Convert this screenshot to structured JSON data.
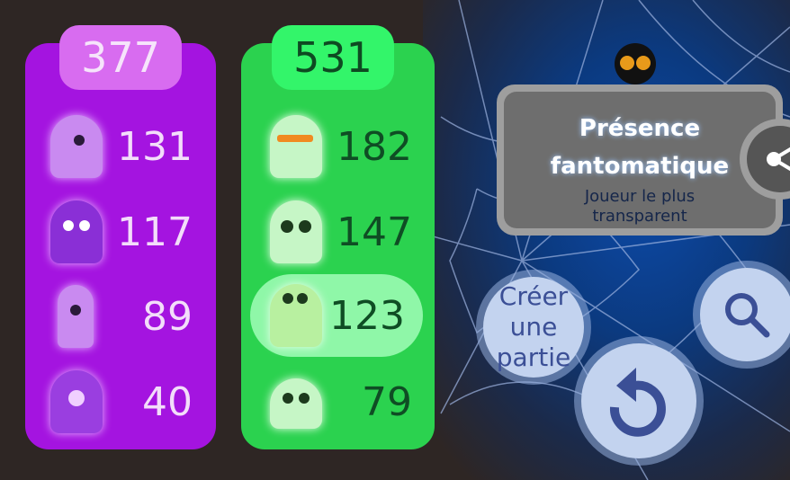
{
  "teams": [
    {
      "color": "purple",
      "total": "377",
      "players": [
        {
          "icon": "ghost-sleepy-icon",
          "score": "131"
        },
        {
          "icon": "ghost-grin-icon",
          "score": "117"
        },
        {
          "icon": "ghost-bunny-icon",
          "score": "89"
        },
        {
          "icon": "ghost-cyclops-icon",
          "score": "40"
        }
      ]
    },
    {
      "color": "green",
      "total": "531",
      "players": [
        {
          "icon": "ghost-sunglasses-icon",
          "score": "182"
        },
        {
          "icon": "ghost-panda-icon",
          "score": "147"
        },
        {
          "icon": "ghost-frog-icon",
          "score": "123",
          "highlighted": true
        },
        {
          "icon": "ghost-cat-icon",
          "score": "79"
        }
      ]
    }
  ],
  "award": {
    "title_line1": "Présence",
    "title_line2": "fantomatique",
    "subtitle_line1": "Joueur le plus",
    "subtitle_line2": "transparent"
  },
  "buttons": {
    "create_line1": "Créer",
    "create_line2": "une",
    "create_line3": "partie"
  },
  "colors": {
    "purple_team": "#a414e0",
    "green_team": "#2bd24f",
    "button": "#c3d3ef",
    "button_icon": "#3b4f96"
  }
}
